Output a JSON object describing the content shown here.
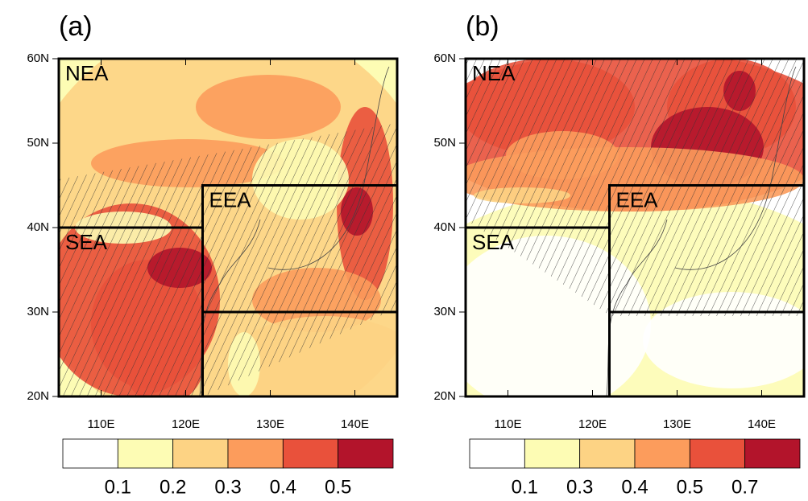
{
  "map": {
    "lon_range": [
      105,
      145
    ],
    "lat_range": [
      20,
      60
    ],
    "lon_ticks": [
      {
        "value": 110,
        "label": "110E"
      },
      {
        "value": 120,
        "label": "120E"
      },
      {
        "value": 130,
        "label": "130E"
      },
      {
        "value": 140,
        "label": "140E"
      }
    ],
    "lat_ticks": [
      {
        "value": 20,
        "label": "20N"
      },
      {
        "value": 30,
        "label": "30N"
      },
      {
        "value": 40,
        "label": "40N"
      },
      {
        "value": 50,
        "label": "50N"
      },
      {
        "value": 60,
        "label": "60N"
      }
    ]
  },
  "panels": [
    {
      "label": "(a)",
      "regions": [
        {
          "name": "NEA",
          "lon": [
            105,
            145
          ],
          "lat": [
            20,
            60
          ]
        },
        {
          "name": "SEA",
          "lon": [
            105,
            122
          ],
          "lat": [
            20,
            40
          ]
        },
        {
          "name": "EEA",
          "lon": [
            122,
            145
          ],
          "lat": [
            30,
            45
          ]
        }
      ],
      "colorbar": {
        "levels": [
          0.1,
          0.2,
          0.3,
          0.4,
          0.5
        ],
        "colors": [
          "#ffffff",
          "#fdfcb4",
          "#fdd384",
          "#fc9c5c",
          "#e9513b",
          "#b3142b"
        ]
      }
    },
    {
      "label": "(b)",
      "regions": [
        {
          "name": "NEA",
          "lon": [
            105,
            145
          ],
          "lat": [
            20,
            60
          ]
        },
        {
          "name": "SEA",
          "lon": [
            105,
            122
          ],
          "lat": [
            20,
            40
          ]
        },
        {
          "name": "EEA",
          "lon": [
            122,
            145
          ],
          "lat": [
            30,
            45
          ]
        }
      ],
      "colorbar": {
        "levels": [
          0.1,
          0.3,
          0.4,
          0.5,
          0.7
        ],
        "colors": [
          "#ffffff",
          "#fdfcb4",
          "#fdd384",
          "#fc9c5c",
          "#e9513b",
          "#b3142b"
        ]
      }
    }
  ]
}
